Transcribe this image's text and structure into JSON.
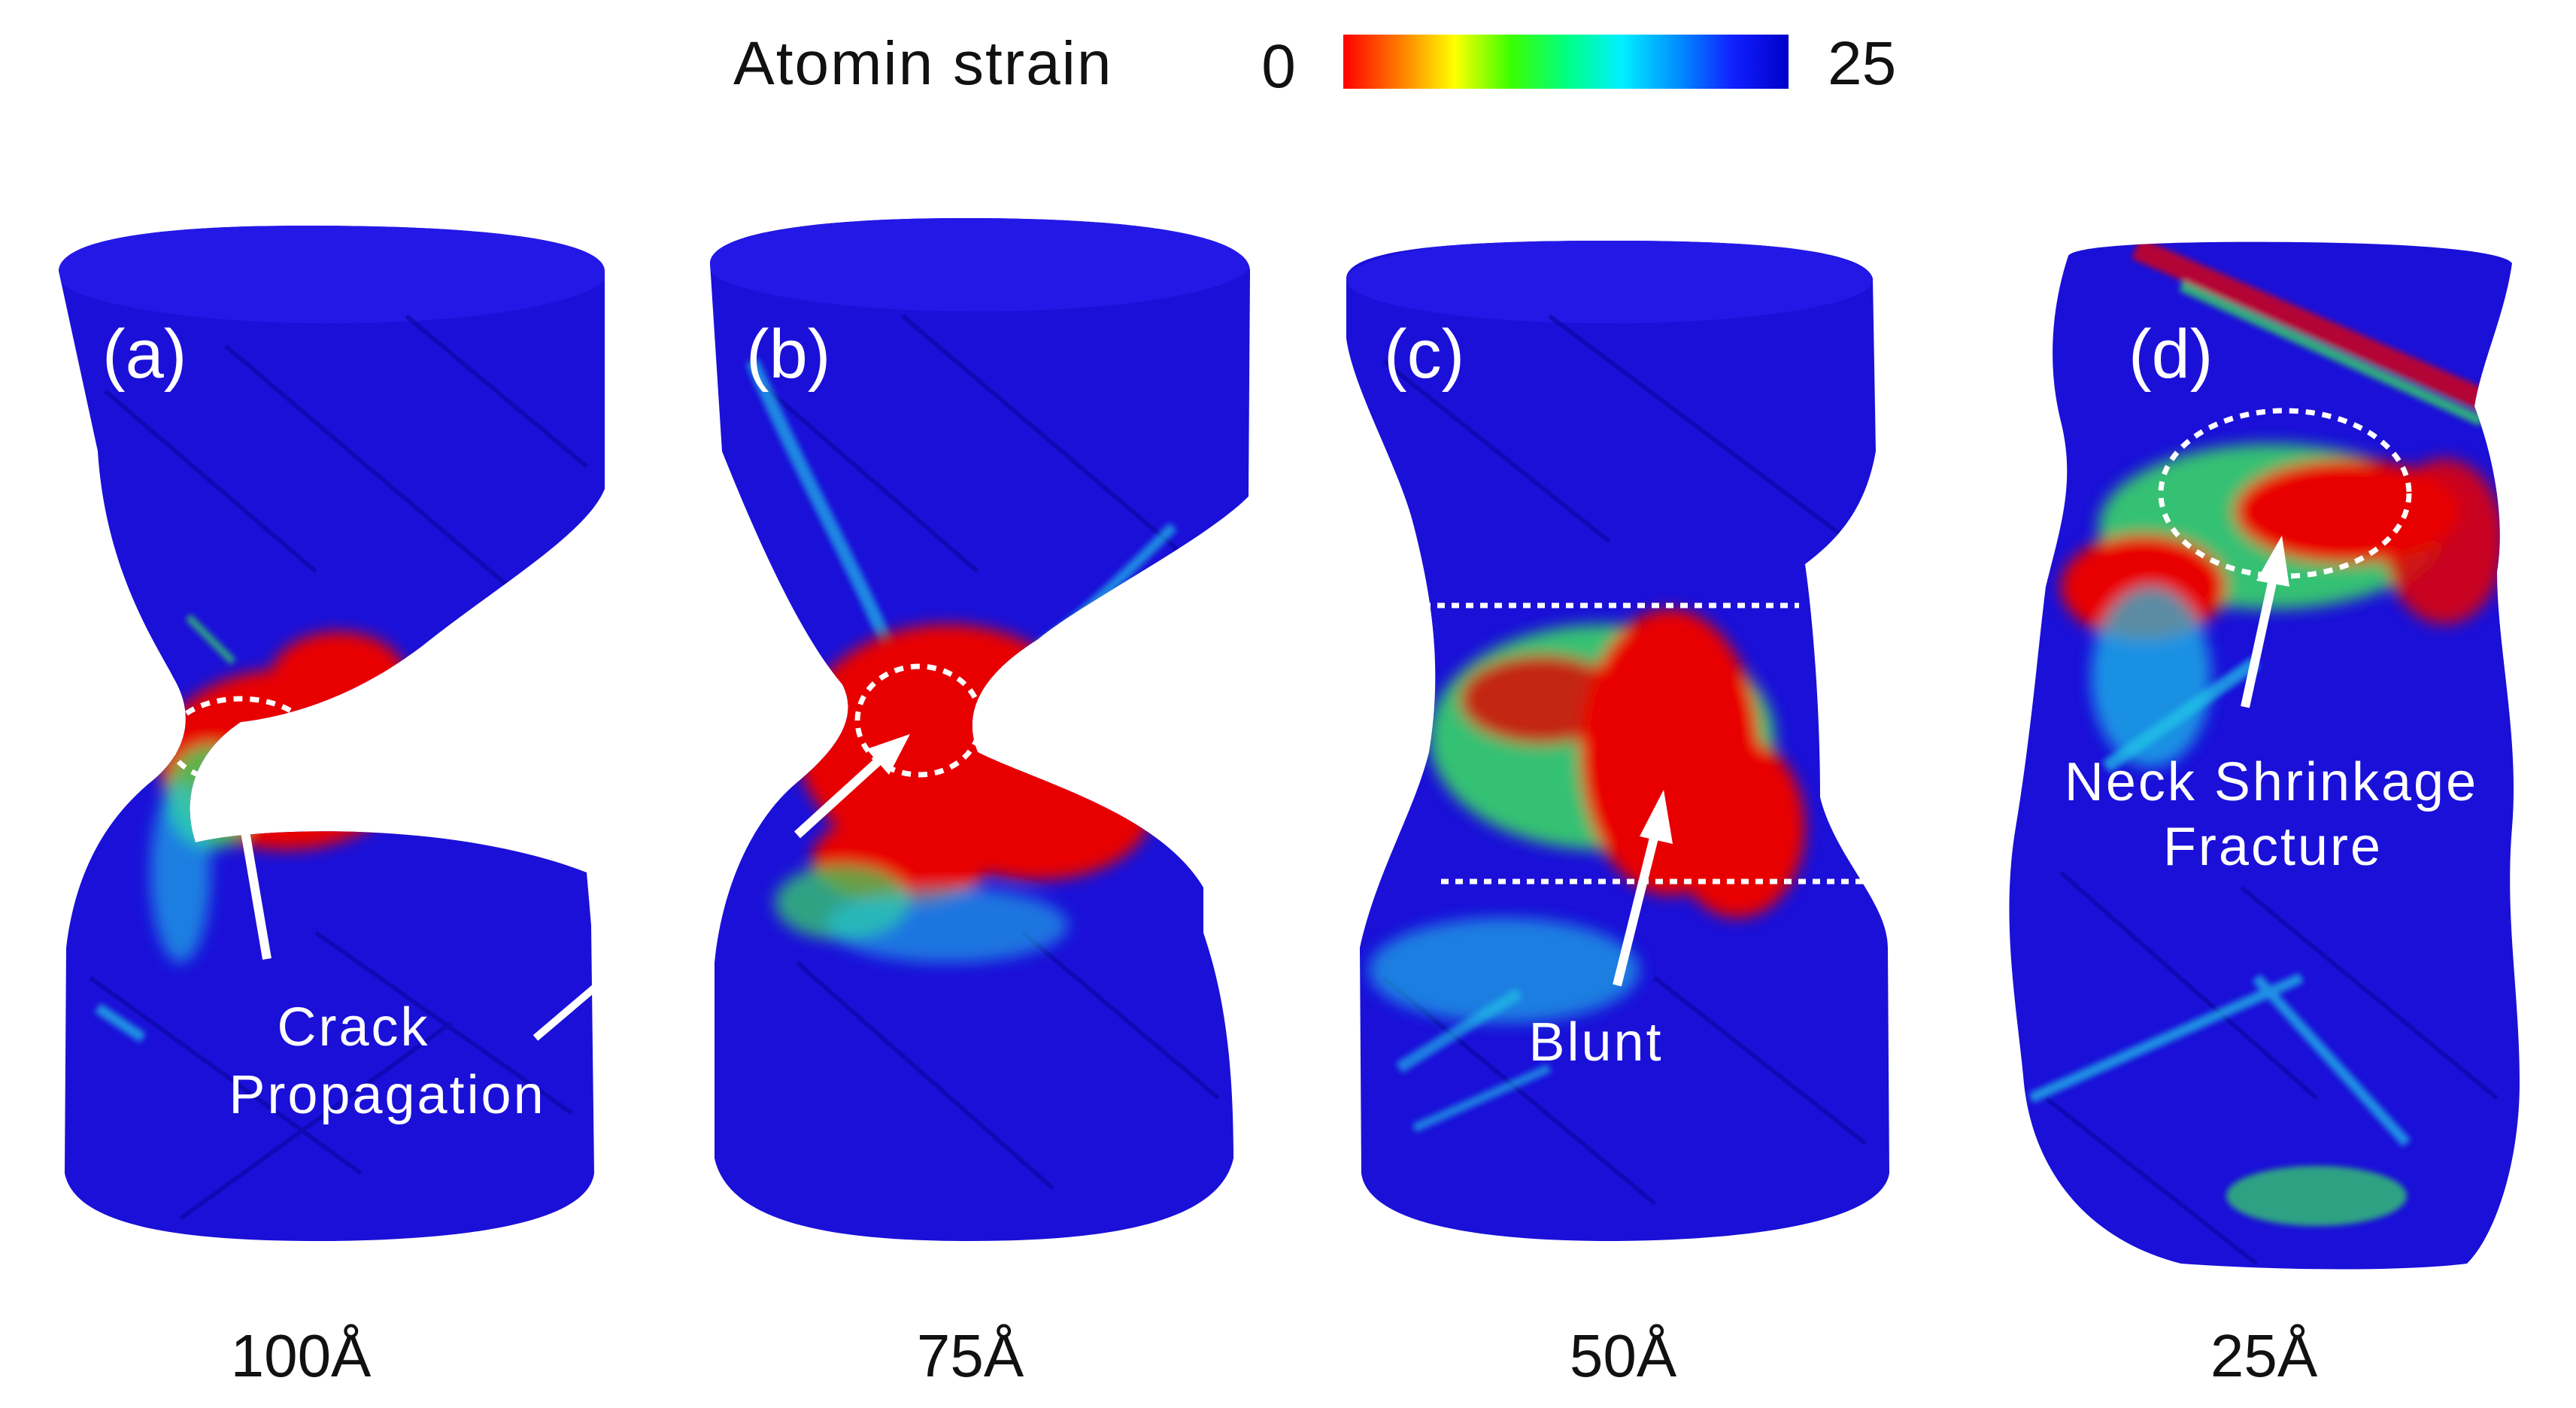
{
  "colorbar": {
    "label": "Atomin strain",
    "min_label": "0",
    "max_label": "25",
    "colors": [
      "#ff0000",
      "#ff7a00",
      "#ffff00",
      "#3cff00",
      "#00ff80",
      "#00f0ff",
      "#0090ff",
      "#1020ff",
      "#0000c8"
    ]
  },
  "panels": [
    {
      "tag": "(a)",
      "diameter": "100Å",
      "annotation": [
        "Crack",
        "Propagation"
      ]
    },
    {
      "tag": "(b)",
      "diameter": "75Å"
    },
    {
      "tag": "(c)",
      "diameter": "50Å",
      "annotation": [
        "Blunt"
      ]
    },
    {
      "tag": "(d)",
      "diameter": "25Å",
      "annotation": [
        "Neck Shrinkage",
        "Fracture"
      ]
    }
  ],
  "colors": {
    "body_blue": "#1a10d8",
    "body_blue_dark": "#0c08a8",
    "top_blue": "#2418e6",
    "strain_red": "#e80000",
    "strain_green": "#38e060",
    "strain_cyan": "#20c8e8",
    "annotation": "#ffffff",
    "text": "#111111"
  }
}
